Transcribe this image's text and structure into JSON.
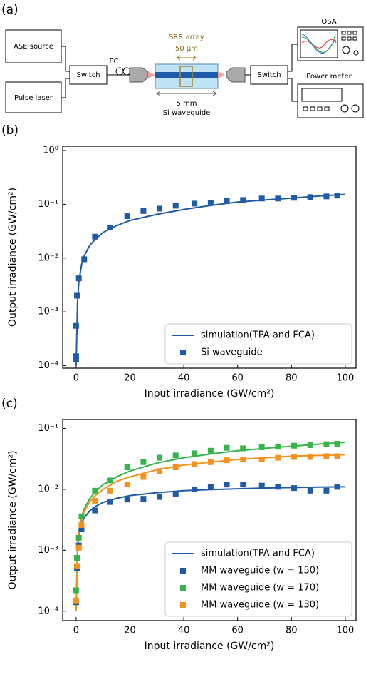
{
  "diagram": {
    "label": "(a)",
    "sources": [
      "ASE source",
      "Pulse laser"
    ],
    "switch_in": "Switch",
    "pc": "PC",
    "srr_label": "SRR array",
    "srr_size": "50 μm",
    "length": "5 mm",
    "waveguide": "Si waveguide",
    "switch_out": "Switch",
    "osa": "OSA",
    "power_meter": "Power meter"
  },
  "chart_data": [
    {
      "type": "line",
      "label": "(b)",
      "xlabel": "Input irradiance (GW/cm²)",
      "ylabel": "Output irradiance (GW/cm²)",
      "yscale": "log",
      "xlim": [
        -5,
        104
      ],
      "ylim": [
        9e-05,
        1.2
      ],
      "xticks": [
        0,
        20,
        40,
        60,
        80,
        100
      ],
      "yticks": [
        {
          "value": 0.0001,
          "label": "10⁻⁴"
        },
        {
          "value": 0.001,
          "label": "10⁻³"
        },
        {
          "value": 0.01,
          "label": "10⁻²"
        },
        {
          "value": 0.1,
          "label": "10⁻¹"
        },
        {
          "value": 1,
          "label": "10⁰"
        }
      ],
      "legend": "lower right",
      "series": [
        {
          "name": "simulation(TPA and FCA)",
          "type": "line",
          "color": "#1f5aa6",
          "x": [
            0.01,
            0.5,
            1,
            2,
            3,
            5,
            7,
            10,
            15,
            20,
            30,
            40,
            50,
            60,
            70,
            80,
            90,
            100
          ],
          "values": [
            0.0001,
            0.0015,
            0.0035,
            0.0075,
            0.011,
            0.017,
            0.022,
            0.03,
            0.04,
            0.05,
            0.065,
            0.08,
            0.095,
            0.11,
            0.12,
            0.13,
            0.142,
            0.153
          ]
        },
        {
          "name": "Si waveguide",
          "type": "scatter",
          "color": "#1f5aa6",
          "x": [
            0,
            0,
            0,
            0.3,
            1,
            3,
            7,
            12.5,
            19,
            25,
            31,
            37,
            44,
            50,
            56,
            62,
            69,
            75,
            81,
            87,
            93,
            97
          ],
          "values": [
            0.00013,
            0.00015,
            0.00055,
            0.002,
            0.0042,
            0.0095,
            0.025,
            0.037,
            0.06,
            0.075,
            0.083,
            0.094,
            0.103,
            0.106,
            0.116,
            0.12,
            0.128,
            0.128,
            0.132,
            0.136,
            0.14,
            0.145
          ]
        }
      ]
    },
    {
      "type": "line",
      "label": "(c)",
      "xlabel": "Input irradiance (GW/cm²)",
      "ylabel": "Output irradiance (GW/cm²)",
      "yscale": "log",
      "xlim": [
        -5,
        104
      ],
      "ylim": [
        7e-05,
        0.14
      ],
      "xticks": [
        0,
        20,
        40,
        60,
        80,
        100
      ],
      "yticks": [
        {
          "value": 0.0001,
          "label": "10⁻⁴"
        },
        {
          "value": 0.001,
          "label": "10⁻³"
        },
        {
          "value": 0.01,
          "label": "10⁻²"
        },
        {
          "value": 0.1,
          "label": "10⁻¹"
        }
      ],
      "legend": "lower right",
      "series": [
        {
          "name": "simulation(TPA and FCA)",
          "type": "line",
          "color": "#1f5aa6",
          "x": [
            0.01,
            0.5,
            1,
            2,
            3,
            5,
            7,
            10,
            15,
            20,
            30,
            40,
            50,
            60,
            70,
            80,
            90,
            100
          ],
          "values": [
            0.0001,
            0.001,
            0.0017,
            0.0027,
            0.0034,
            0.0044,
            0.0052,
            0.0061,
            0.0071,
            0.0079,
            0.0088,
            0.0095,
            0.0099,
            0.0102,
            0.0105,
            0.0107,
            0.0109,
            0.011
          ]
        },
        {
          "type": "line",
          "color": "#33b54a",
          "x": [
            0.01,
            0.5,
            1,
            2,
            3,
            5,
            7,
            10,
            15,
            20,
            30,
            40,
            50,
            60,
            70,
            80,
            90,
            100
          ],
          "values": [
            0.0001,
            0.0011,
            0.002,
            0.0035,
            0.0048,
            0.007,
            0.009,
            0.012,
            0.016,
            0.02,
            0.027,
            0.033,
            0.038,
            0.043,
            0.047,
            0.051,
            0.055,
            0.059
          ]
        },
        {
          "type": "line",
          "color": "#f5921e",
          "x": [
            0.01,
            0.5,
            1,
            2,
            3,
            5,
            7,
            10,
            15,
            20,
            30,
            40,
            50,
            60,
            70,
            80,
            90,
            100
          ],
          "values": [
            0.0001,
            0.001,
            0.0019,
            0.0032,
            0.0043,
            0.0062,
            0.0078,
            0.01,
            0.0135,
            0.016,
            0.021,
            0.025,
            0.028,
            0.031,
            0.033,
            0.035,
            0.036,
            0.037
          ]
        },
        {
          "name": "MM waveguide (w = 150)",
          "type": "scatter",
          "color": "#1f5aa6",
          "x": [
            0,
            0.3,
            1,
            2,
            7,
            12.5,
            19,
            25,
            31,
            37,
            44,
            50,
            56,
            62,
            69,
            75,
            81,
            87,
            93,
            97
          ],
          "values": [
            0.00014,
            0.0005,
            0.0012,
            0.0022,
            0.0045,
            0.0062,
            0.0068,
            0.007,
            0.0075,
            0.0085,
            0.01,
            0.011,
            0.012,
            0.012,
            0.0115,
            0.011,
            0.0105,
            0.0095,
            0.0095,
            0.011
          ]
        },
        {
          "name": "MM waveguide (w = 170)",
          "type": "scatter",
          "color": "#33b54a",
          "x": [
            0,
            0.3,
            1,
            2,
            7,
            12.5,
            19,
            25,
            31,
            37,
            44,
            50,
            56,
            62,
            69,
            75,
            81,
            87,
            93,
            97
          ],
          "values": [
            0.00022,
            0.00075,
            0.0016,
            0.0036,
            0.0095,
            0.014,
            0.023,
            0.028,
            0.033,
            0.036,
            0.039,
            0.043,
            0.048,
            0.047,
            0.049,
            0.05,
            0.052,
            0.053,
            0.055,
            0.056
          ]
        },
        {
          "name": "MM waveguide (w = 130)",
          "type": "scatter",
          "color": "#f5921e",
          "x": [
            0,
            0.3,
            1,
            2,
            7,
            12.5,
            19,
            25,
            31,
            37,
            44,
            50,
            56,
            62,
            69,
            75,
            81,
            87,
            93,
            97
          ],
          "values": [
            0.00015,
            0.00055,
            0.0011,
            0.0026,
            0.0065,
            0.0095,
            0.012,
            0.016,
            0.02,
            0.023,
            0.026,
            0.028,
            0.03,
            0.031,
            0.031,
            0.033,
            0.034,
            0.034,
            0.035,
            0.035
          ]
        }
      ]
    }
  ]
}
